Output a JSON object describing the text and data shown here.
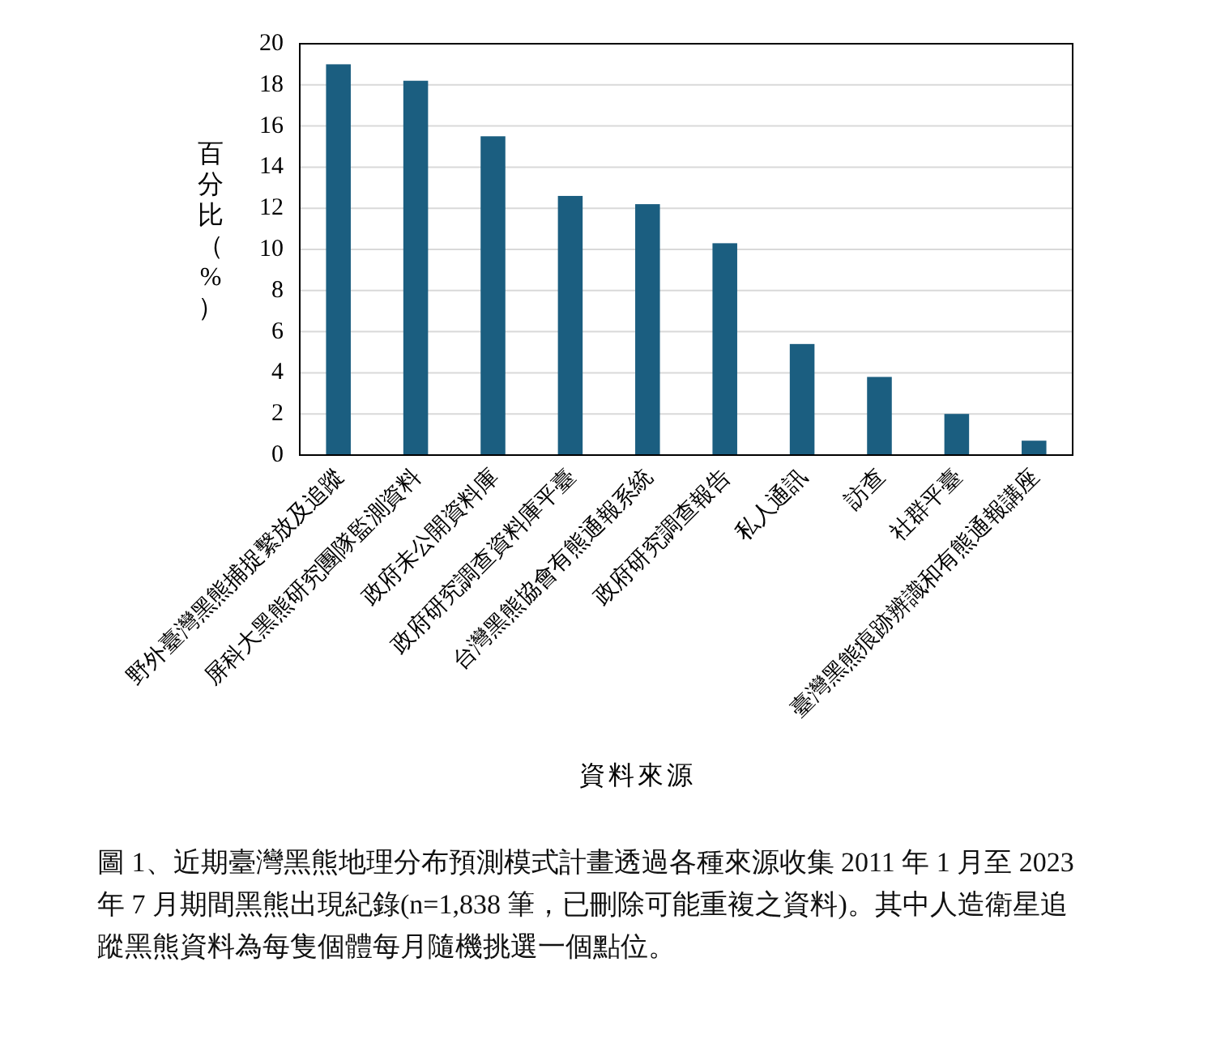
{
  "chart_data": {
    "type": "bar",
    "categories": [
      "野外臺灣黑熊捕捉繫放及追蹤",
      "屏科大黑熊研究團隊監測資料",
      "政府未公開資料庫",
      "政府研究調查資料庫平臺",
      "台灣黑熊協會有熊通報系統",
      "政府研究調查報告",
      "私人通訊",
      "訪查",
      "社群平臺",
      "臺灣黑熊痕跡辨識和有熊通報講座"
    ],
    "values": [
      19.0,
      18.2,
      15.5,
      12.6,
      12.2,
      10.3,
      5.4,
      3.8,
      2.0,
      0.7
    ],
    "color": "#1b5e80",
    "ylim": [
      0,
      20
    ],
    "yticks": [
      0,
      2,
      4,
      6,
      8,
      10,
      12,
      14,
      16,
      18,
      20
    ],
    "grid": "y",
    "ylabel": "百分比（%）",
    "xlabel": "資料來源",
    "annotations": [
      "圖 1、近期臺灣黑熊地理分布預測模式計畫透過各種來源收集 2011 年 1 月至 2023 年 7 月期間黑熊出現紀錄(n=1,838 筆，已刪除可能重複之資料)。其中人造衛星追蹤黑熊資料為每隻個體每月隨機挑選一個點位。"
    ]
  }
}
